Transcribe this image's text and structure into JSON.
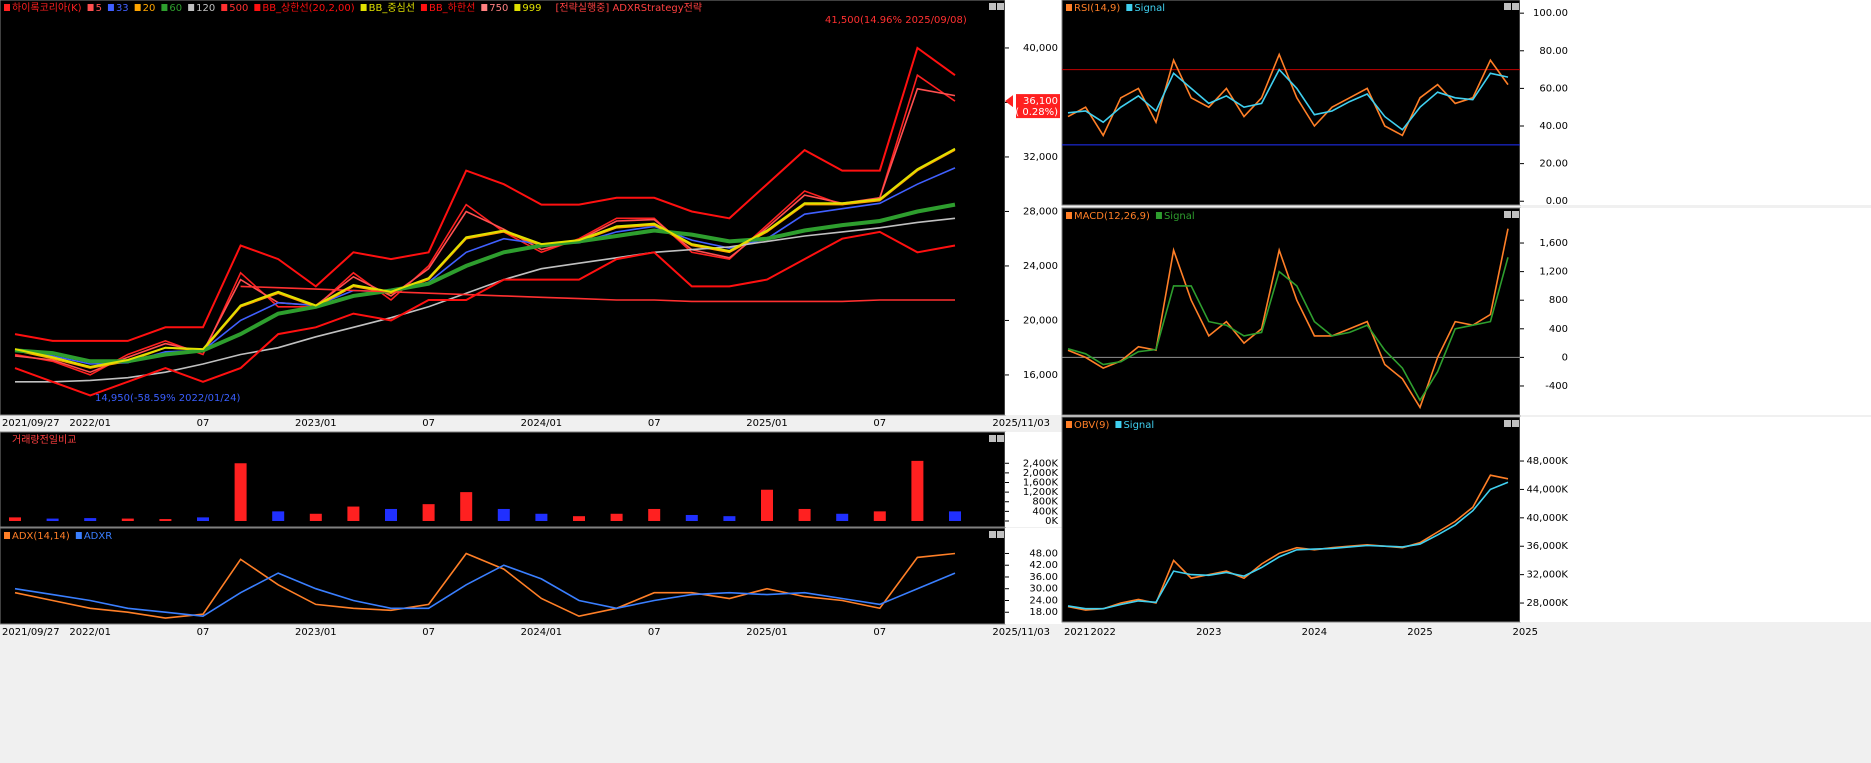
{
  "chart_data": [
    {
      "type": "line",
      "categories": [
        "2021/09/27",
        null,
        "2022/01",
        null,
        null,
        "07",
        null,
        null,
        "2023/01",
        null,
        null,
        "07",
        null,
        null,
        "2024/01",
        null,
        null,
        "07",
        null,
        null,
        "2025/01",
        null,
        null,
        "07",
        null,
        "2025/11/03"
      ],
      "series": [
        {
          "name": "하이록코리아(K)",
          "color": "#ff2020",
          "values": [
            17500,
            17000,
            16000,
            17500,
            18500,
            17500,
            23500,
            21000,
            21000,
            23500,
            21500,
            24000,
            28500,
            26500,
            25000,
            26000,
            27500,
            27500,
            25000,
            24500,
            27000,
            29500,
            28500,
            29000,
            38000,
            36100
          ]
        },
        {
          "name": "5",
          "color": "#ff5050",
          "values": [
            17400,
            17100,
            16200,
            17300,
            18300,
            17700,
            23000,
            21300,
            21100,
            23200,
            21800,
            23800,
            28000,
            26700,
            25200,
            25900,
            27300,
            27400,
            25200,
            24600,
            26800,
            29200,
            28600,
            29000,
            37000,
            36500
          ]
        },
        {
          "name": "33",
          "color": "#4060ff",
          "values": [
            17800,
            17400,
            16800,
            16900,
            17700,
            17800,
            20000,
            21300,
            21100,
            22200,
            22100,
            22800,
            25000,
            26000,
            25600,
            25700,
            26500,
            26900,
            25900,
            25300,
            26000,
            27800,
            28200,
            28600,
            30000,
            31200
          ]
        },
        {
          "name": "20",
          "color": "#ffa500",
          "values": [
            17800,
            17200,
            16500,
            17000,
            18000,
            17800,
            21000,
            22000,
            21000,
            22500,
            22000,
            23000,
            26000,
            26500,
            25500,
            25800,
            26800,
            27000,
            25500,
            25000,
            26500,
            28500,
            28500,
            28800,
            31000,
            32500
          ]
        },
        {
          "name": "60",
          "color": "#2e9e2e",
          "values": [
            17800,
            17600,
            17000,
            17000,
            17500,
            17800,
            19000,
            20500,
            21000,
            21800,
            22200,
            22700,
            24000,
            25000,
            25500,
            25800,
            26200,
            26600,
            26300,
            25800,
            26000,
            26600,
            27000,
            27300,
            28000,
            28500
          ]
        },
        {
          "name": "120",
          "color": "#c0c0c0",
          "values": [
            15500,
            15500,
            15600,
            15800,
            16200,
            16800,
            17500,
            18000,
            18800,
            19500,
            20200,
            21000,
            22000,
            23000,
            23800,
            24200,
            24600,
            25000,
            25200,
            25400,
            25800,
            26200,
            26500,
            26800,
            27200,
            27500
          ]
        },
        {
          "name": "500",
          "color": "#ff3030",
          "values": [
            null,
            null,
            null,
            null,
            null,
            null,
            22500,
            22400,
            22300,
            22200,
            22100,
            22000,
            21900,
            21800,
            21700,
            21600,
            21500,
            21500,
            21400,
            21400,
            21400,
            21400,
            21400,
            21500,
            21500,
            21500
          ]
        },
        {
          "name": "BB_상한선(20,2,00)",
          "color": "#ff1010",
          "values": [
            19000,
            18500,
            18500,
            18500,
            19500,
            19500,
            25500,
            24500,
            22500,
            25000,
            24500,
            25000,
            31000,
            30000,
            28500,
            28500,
            29000,
            29000,
            28000,
            27500,
            30000,
            32500,
            31000,
            31000,
            40000,
            38000
          ]
        },
        {
          "name": "BB_중심선",
          "color": "#e0e000",
          "values": [
            17900,
            17300,
            16600,
            17100,
            18000,
            17900,
            21100,
            22100,
            21100,
            22600,
            22100,
            23100,
            26100,
            26600,
            25600,
            25900,
            26900,
            27100,
            25600,
            25100,
            26600,
            28600,
            28600,
            28900,
            31100,
            32600
          ]
        },
        {
          "name": "BB_하한선",
          "color": "#ff1010",
          "values": [
            16500,
            15500,
            14500,
            15500,
            16500,
            15500,
            16500,
            19000,
            19500,
            20500,
            20000,
            21500,
            21500,
            23000,
            23000,
            23000,
            24500,
            25000,
            22500,
            22500,
            23000,
            24500,
            26000,
            26500,
            25000,
            25500
          ]
        }
      ],
      "other_legend": [
        {
          "name": "750",
          "color": "#ff8080"
        },
        {
          "name": "999",
          "color": "#e0e000"
        }
      ],
      "strategy_label": "[전략실행중] ADXRStrategy전략",
      "annotations": [
        "41,500(14.96% 2025/09/08)",
        "14,950(-58.59% 2022/01/24)"
      ],
      "last_price": {
        "value": 36100,
        "label": "36,100"
      },
      "change_label": "( 0.28%)",
      "ylim": [
        13060,
        43520
      ],
      "yticks": [
        {
          "value": 16000,
          "label": "16,000"
        },
        {
          "value": 20000,
          "label": "20,000"
        },
        {
          "value": 24000,
          "label": "24,000"
        },
        {
          "value": 28000,
          "label": "28,000"
        },
        {
          "value": 32000,
          "label": "32,000"
        },
        {
          "value": 36000,
          "label": "36,000"
        },
        {
          "value": 40000,
          "label": "40,000"
        }
      ]
    },
    {
      "type": "bar",
      "title": "거래량전일비교",
      "values": [
        150,
        100,
        120,
        100,
        80,
        150,
        2400,
        400,
        300,
        600,
        500,
        700,
        1200,
        500,
        300,
        200,
        300,
        500,
        250,
        200,
        1300,
        500,
        300,
        400,
        2500,
        400
      ],
      "up_color": "#ff2020",
      "down_color": "#2030ff",
      "ylim": [
        -250,
        3700
      ],
      "yticks": [
        {
          "value": 0,
          "label": "0K"
        },
        {
          "value": 400,
          "label": "400K"
        },
        {
          "value": 800,
          "label": "800K"
        },
        {
          "value": 1200,
          "label": "1,200K"
        },
        {
          "value": 1600,
          "label": "1,600K"
        },
        {
          "value": 2000,
          "label": "2,000K"
        },
        {
          "value": 2400,
          "label": "2,400K"
        }
      ]
    },
    {
      "type": "line",
      "categories": [
        "2021/09/27",
        null,
        "2022/01",
        null,
        null,
        "07",
        null,
        null,
        "2023/01",
        null,
        null,
        "07",
        null,
        null,
        "2024/01",
        null,
        null,
        "07",
        null,
        null,
        "2025/01",
        null,
        null,
        "07",
        null,
        "2025/11/03"
      ],
      "series": [
        {
          "name": "ADX(14,14)",
          "color": "#ff7f27",
          "values": [
            28,
            24,
            20,
            18,
            15,
            17,
            45,
            32,
            22,
            20,
            19,
            22,
            48,
            40,
            25,
            16,
            20,
            28,
            28,
            25,
            30,
            26,
            24,
            20,
            46,
            48
          ]
        },
        {
          "name": "ADXR",
          "color": "#3a7fff",
          "values": [
            30,
            27,
            24,
            20,
            18,
            16,
            28,
            38,
            30,
            24,
            20,
            20,
            32,
            42,
            35,
            24,
            20,
            24,
            27,
            28,
            27,
            28,
            25,
            22,
            30,
            38
          ]
        }
      ],
      "ylim": [
        12,
        61
      ],
      "yticks": [
        {
          "value": 18,
          "label": "18.00"
        },
        {
          "value": 24,
          "label": "24.00"
        },
        {
          "value": 30,
          "label": "30.00"
        },
        {
          "value": 36,
          "label": "36.00"
        },
        {
          "value": 42,
          "label": "42.00"
        },
        {
          "value": 48,
          "label": "48.00"
        }
      ]
    },
    {
      "type": "line",
      "series": [
        {
          "name": "RSI(14,9)",
          "color": "#ff7f27",
          "values": [
            45,
            50,
            35,
            55,
            60,
            42,
            75,
            55,
            50,
            60,
            45,
            55,
            78,
            55,
            40,
            50,
            55,
            60,
            40,
            35,
            55,
            62,
            52,
            55,
            75,
            62
          ]
        },
        {
          "name": "Signal",
          "color": "#40d0f0",
          "values": [
            47,
            48,
            42,
            50,
            56,
            48,
            68,
            60,
            52,
            56,
            50,
            52,
            70,
            60,
            46,
            48,
            53,
            57,
            45,
            38,
            50,
            58,
            55,
            54,
            68,
            66
          ]
        }
      ],
      "hlines": [
        {
          "value": 70,
          "color": "#c00000"
        },
        {
          "value": 30,
          "color": "#2030ff"
        }
      ],
      "ylim": [
        -2,
        107
      ],
      "yticks": [
        {
          "value": 0,
          "label": "0.00"
        },
        {
          "value": 20,
          "label": "20.00"
        },
        {
          "value": 40,
          "label": "40.00"
        },
        {
          "value": 60,
          "label": "60.00"
        },
        {
          "value": 80,
          "label": "80.00"
        },
        {
          "value": 100,
          "label": "100.00"
        }
      ]
    },
    {
      "type": "line",
      "series": [
        {
          "name": "MACD(12,26,9)",
          "color": "#ff7f27",
          "values": [
            100,
            0,
            -150,
            -50,
            150,
            100,
            1500,
            800,
            300,
            500,
            200,
            400,
            1500,
            800,
            300,
            300,
            400,
            500,
            -100,
            -300,
            -700,
            0,
            500,
            450,
            600,
            1800
          ]
        },
        {
          "name": "Signal",
          "color": "#2e9e2e",
          "values": [
            120,
            50,
            -100,
            -60,
            80,
            110,
            1000,
            1000,
            500,
            450,
            300,
            350,
            1200,
            1000,
            500,
            300,
            350,
            450,
            100,
            -150,
            -600,
            -200,
            400,
            450,
            500,
            1400
          ]
        }
      ],
      "hlines": [
        {
          "value": 0,
          "color": "#909090"
        }
      ],
      "ylim": [
        -806,
        2090
      ],
      "yticks": [
        -400,
        0,
        400,
        800,
        {
          "value": 1200,
          "label": "1,200"
        },
        {
          "value": 1600,
          "label": "1,600"
        }
      ]
    },
    {
      "type": "line",
      "categories": [
        "2021",
        null,
        "2022",
        null,
        null,
        null,
        null,
        null,
        "2023",
        null,
        null,
        null,
        null,
        null,
        "2024",
        null,
        null,
        null,
        null,
        null,
        "2025",
        null,
        null,
        null,
        null,
        "2025"
      ],
      "series": [
        {
          "name": "OBV(9)",
          "color": "#ff7f27",
          "values": [
            27500,
            27000,
            27200,
            28000,
            28500,
            28000,
            34000,
            31500,
            32000,
            32500,
            31500,
            33500,
            35000,
            35800,
            35500,
            35800,
            36000,
            36200,
            36000,
            35800,
            36500,
            38000,
            39500,
            41500,
            46000,
            45500
          ]
        },
        {
          "name": "Signal",
          "color": "#40d0f0",
          "values": [
            27600,
            27200,
            27200,
            27800,
            28300,
            28100,
            32500,
            32000,
            31900,
            32300,
            31800,
            33000,
            34500,
            35500,
            35600,
            35700,
            35900,
            36100,
            36000,
            35900,
            36300,
            37600,
            39000,
            41000,
            44000,
            45000
          ]
        }
      ],
      "ylim": [
        25330,
        54200
      ],
      "yticks": [
        {
          "value": 28000,
          "label": "28,000K"
        },
        {
          "value": 32000,
          "label": "32,000K"
        },
        {
          "value": 36000,
          "label": "36,000K"
        },
        {
          "value": 40000,
          "label": "40,000K"
        },
        {
          "value": 44000,
          "label": "44,000K"
        },
        {
          "value": 48000,
          "label": "48,000K"
        }
      ]
    }
  ]
}
